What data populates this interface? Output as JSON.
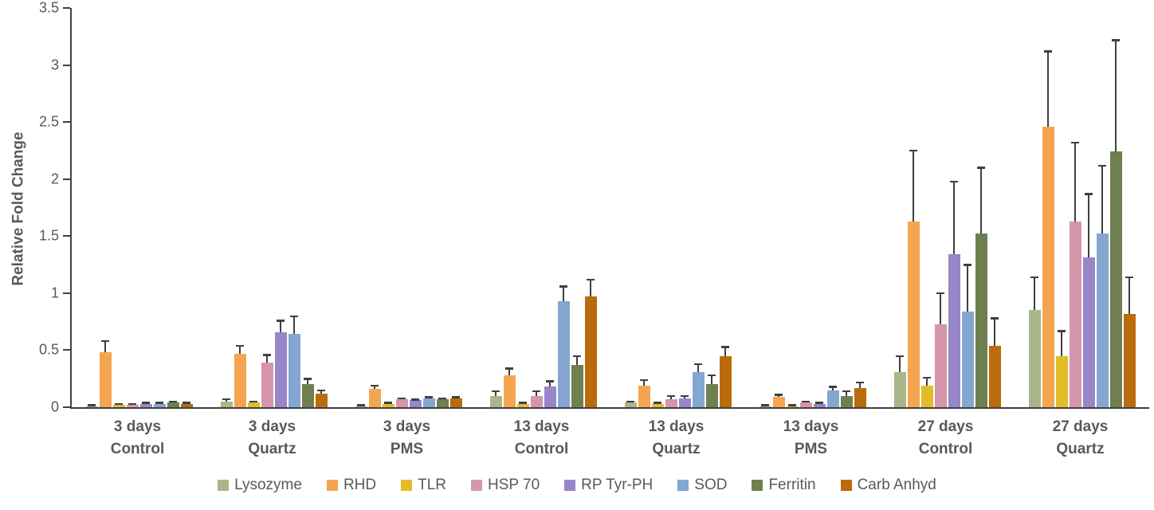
{
  "chart_data": {
    "type": "bar",
    "title": "",
    "xlabel": "",
    "ylabel": "Relative Fold Change",
    "ylim": [
      0,
      3.5
    ],
    "ytick_step": 0.5,
    "grid": false,
    "error_bars": true,
    "legend_position": "bottom",
    "axis_color": "#3f3f3f",
    "text_color": "#595959",
    "categories": [
      [
        "3 days",
        "Control"
      ],
      [
        "3 days",
        "Quartz"
      ],
      [
        "3 days",
        "PMS"
      ],
      [
        "13 days",
        "Control"
      ],
      [
        "13 days",
        "Quartz"
      ],
      [
        "13 days",
        "PMS"
      ],
      [
        "27 days",
        "Control"
      ],
      [
        "27 days",
        "Quartz"
      ]
    ],
    "series": [
      {
        "name": "Lysozyme",
        "color": "#A9B689",
        "values": [
          0.01,
          0.05,
          0.01,
          0.1,
          0.04,
          0.01,
          0.31,
          0.85
        ],
        "errors": [
          0.01,
          0.02,
          0.01,
          0.04,
          0.01,
          0.01,
          0.14,
          0.29
        ]
      },
      {
        "name": "RHD",
        "color": "#F5A54F",
        "values": [
          0.48,
          0.47,
          0.16,
          0.28,
          0.19,
          0.09,
          1.63,
          2.46
        ],
        "errors": [
          0.1,
          0.07,
          0.03,
          0.06,
          0.05,
          0.02,
          0.62,
          0.66
        ]
      },
      {
        "name": "TLR",
        "color": "#E2BC29",
        "values": [
          0.02,
          0.04,
          0.03,
          0.03,
          0.03,
          0.01,
          0.19,
          0.45
        ],
        "errors": [
          0.01,
          0.01,
          0.01,
          0.01,
          0.01,
          0.01,
          0.07,
          0.22
        ]
      },
      {
        "name": "HSP 70",
        "color": "#D595AB",
        "values": [
          0.02,
          0.39,
          0.07,
          0.1,
          0.07,
          0.04,
          0.73,
          1.63
        ],
        "errors": [
          0.01,
          0.07,
          0.01,
          0.04,
          0.03,
          0.01,
          0.27,
          0.69
        ]
      },
      {
        "name": "RP Tyr-PH",
        "color": "#9787C9",
        "values": [
          0.03,
          0.66,
          0.06,
          0.18,
          0.08,
          0.03,
          1.34,
          1.31
        ],
        "errors": [
          0.01,
          0.1,
          0.01,
          0.05,
          0.02,
          0.01,
          0.64,
          0.56
        ]
      },
      {
        "name": "SOD",
        "color": "#84A7D2",
        "values": [
          0.03,
          0.64,
          0.08,
          0.93,
          0.31,
          0.15,
          0.84,
          1.52
        ],
        "errors": [
          0.01,
          0.16,
          0.01,
          0.13,
          0.07,
          0.03,
          0.41,
          0.6
        ]
      },
      {
        "name": "Ferritin",
        "color": "#6E7F50",
        "values": [
          0.04,
          0.2,
          0.07,
          0.37,
          0.2,
          0.1,
          1.52,
          2.24
        ],
        "errors": [
          0.01,
          0.05,
          0.01,
          0.08,
          0.08,
          0.04,
          0.58,
          0.98
        ]
      },
      {
        "name": "Carb Anhyd",
        "color": "#BA6B0C",
        "values": [
          0.03,
          0.12,
          0.08,
          0.97,
          0.45,
          0.17,
          0.54,
          0.82
        ],
        "errors": [
          0.01,
          0.03,
          0.01,
          0.15,
          0.08,
          0.05,
          0.24,
          0.32
        ]
      }
    ]
  }
}
